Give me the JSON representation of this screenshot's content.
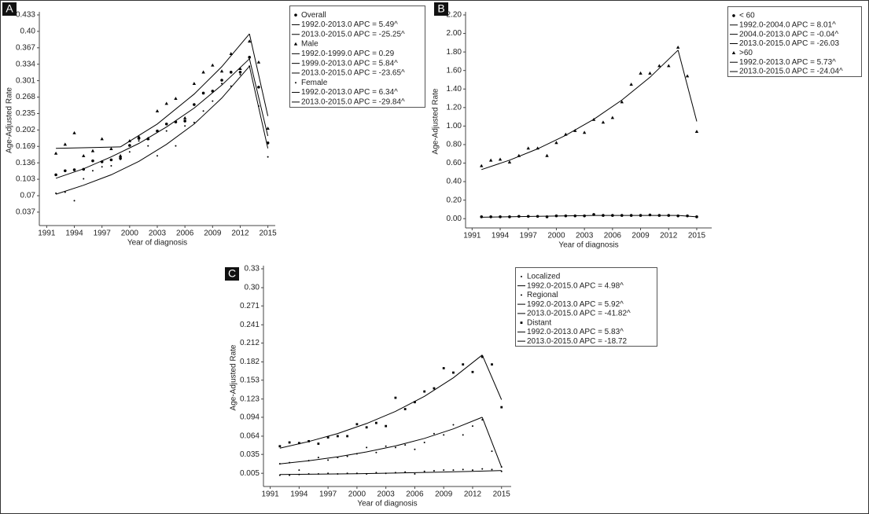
{
  "chart_data": [
    {
      "type": "scatter-line",
      "panel": "A",
      "ylabel": "Age-Adjusted Rate",
      "xlabel": "Year of diagnosis",
      "xlim": [
        1990.2,
        2015.8
      ],
      "xticks": [
        1991,
        1994,
        1997,
        2000,
        2003,
        2006,
        2009,
        2012,
        2015
      ],
      "ylim": [
        0.01,
        0.433
      ],
      "yticks": [
        0.037,
        0.07,
        0.103,
        0.136,
        0.169,
        0.202,
        0.235,
        0.268,
        0.301,
        0.334,
        0.367,
        {
          "value": 0.4,
          "label": "0.40"
        },
        0.433
      ],
      "x": [
        1992,
        1993,
        1994,
        1995,
        1996,
        1997,
        1998,
        1999,
        2000,
        2001,
        2002,
        2003,
        2004,
        2005,
        2006,
        2007,
        2008,
        2009,
        2010,
        2011,
        2012,
        2013,
        2014,
        2015
      ],
      "series": [
        {
          "name": "Overall",
          "kind": "points",
          "marker": "circle",
          "color": "#000000",
          "values": [
            0.112,
            0.12,
            0.122,
            0.123,
            0.14,
            0.138,
            0.142,
            0.145,
            0.171,
            0.185,
            0.184,
            0.2,
            0.214,
            0.218,
            0.22,
            0.253,
            0.276,
            0.28,
            0.302,
            0.318,
            0.318,
            0.348,
            0.288,
            0.176
          ]
        },
        {
          "name": "1992.0-2013.0 APC = 5.49^",
          "kind": "line",
          "color": "#000000",
          "x": [
            1992,
            1995,
            1998,
            2001,
            2004,
            2007,
            2010,
            2013
          ],
          "values": [
            0.105,
            0.124,
            0.148,
            0.175,
            0.208,
            0.246,
            0.292,
            0.345
          ]
        },
        {
          "name": "2013.0-2015.0 APC = -25.25^",
          "kind": "line",
          "color": "#000000",
          "x": [
            2013,
            2015
          ],
          "values": [
            0.345,
            0.19
          ]
        },
        {
          "name": "Male",
          "kind": "points",
          "marker": "triangle",
          "color": "#000000",
          "values": [
            0.155,
            0.173,
            0.196,
            0.15,
            0.16,
            0.184,
            0.164,
            0.15,
            0.18,
            0.188,
            0.185,
            0.24,
            0.255,
            0.265,
            0.226,
            0.295,
            0.318,
            0.332,
            0.32,
            0.355,
            0.325,
            0.38,
            0.338,
            0.205
          ]
        },
        {
          "name": "1992.0-1999.0 APC = 0.29",
          "kind": "line",
          "color": "#000000",
          "x": [
            1992,
            1999
          ],
          "values": [
            0.165,
            0.168
          ]
        },
        {
          "name": "1999.0-2013.0 APC = 5.84^",
          "kind": "line",
          "color": "#000000",
          "x": [
            1999,
            2003,
            2007,
            2010,
            2013
          ],
          "values": [
            0.168,
            0.214,
            0.274,
            0.329,
            0.395
          ]
        },
        {
          "name": "2013.0-2015.0 APC = -23.65^",
          "kind": "line",
          "color": "#000000",
          "x": [
            2013,
            2015
          ],
          "values": [
            0.395,
            0.23
          ]
        },
        {
          "name": "Female",
          "kind": "points",
          "marker": "dot",
          "color": "#000000",
          "values": [
            0.075,
            0.077,
            0.06,
            0.104,
            0.12,
            0.128,
            0.13,
            0.143,
            0.158,
            0.18,
            0.17,
            0.15,
            0.2,
            0.17,
            0.21,
            0.217,
            0.24,
            0.26,
            0.295,
            0.29,
            0.313,
            0.33,
            0.25,
            0.148
          ]
        },
        {
          "name": "1992.0-2013.0 APC = 6.34^",
          "kind": "line",
          "color": "#000000",
          "x": [
            1992,
            1995,
            1998,
            2001,
            2004,
            2007,
            2010,
            2013
          ],
          "values": [
            0.073,
            0.091,
            0.112,
            0.139,
            0.173,
            0.214,
            0.266,
            0.33
          ]
        },
        {
          "name": "2013.0-2015.0 APC = -29.84^",
          "kind": "line",
          "color": "#000000",
          "x": [
            2013,
            2015
          ],
          "values": [
            0.33,
            0.165
          ]
        }
      ]
    },
    {
      "type": "scatter-line",
      "panel": "B",
      "ylabel": "Age-Adjusted Rate",
      "xlabel": "Year of diagnosis",
      "xlim": [
        1990.3,
        2016.6
      ],
      "xticks": [
        1991,
        1994,
        1997,
        2000,
        2003,
        2006,
        2009,
        2012,
        2015
      ],
      "ylim": [
        -0.1,
        2.2
      ],
      "yticks": [
        {
          "value": 0,
          "label": "0.00"
        },
        {
          "value": 0.2,
          "label": "0.20"
        },
        {
          "value": 0.4,
          "label": "0.40"
        },
        {
          "value": 0.6,
          "label": "0.60"
        },
        {
          "value": 0.8,
          "label": "0.80"
        },
        {
          "value": 1,
          "label": "1.00"
        },
        {
          "value": 1.2,
          "label": "1.20"
        },
        {
          "value": 1.4,
          "label": "1.40"
        },
        {
          "value": 1.6,
          "label": "1.60"
        },
        {
          "value": 1.8,
          "label": "1.80"
        },
        {
          "value": 2,
          "label": "2.00"
        },
        {
          "value": 2.2,
          "label": "2.20"
        }
      ],
      "x": [
        1992,
        1993,
        1994,
        1995,
        1996,
        1997,
        1998,
        1999,
        2000,
        2001,
        2002,
        2003,
        2004,
        2005,
        2006,
        2007,
        2008,
        2009,
        2010,
        2011,
        2012,
        2013,
        2014,
        2015
      ],
      "series": [
        {
          "name": "< 60",
          "kind": "points",
          "marker": "circle",
          "color": "#000000",
          "values": [
            0.02,
            0.02,
            0.02,
            0.02,
            0.025,
            0.025,
            0.025,
            0.02,
            0.03,
            0.03,
            0.03,
            0.03,
            0.045,
            0.035,
            0.035,
            0.035,
            0.035,
            0.035,
            0.04,
            0.035,
            0.035,
            0.03,
            0.03,
            0.02
          ]
        },
        {
          "name": "1992.0-2004.0 APC = 8.01^",
          "kind": "line",
          "color": "#000000",
          "x": [
            1992,
            2004
          ],
          "values": [
            0.015,
            0.035
          ]
        },
        {
          "name": "2004.0-2013.0 APC = -0.04^",
          "kind": "line",
          "color": "#000000",
          "x": [
            2004,
            2013
          ],
          "values": [
            0.035,
            0.035
          ]
        },
        {
          "name": "2013.0-2015.0 APC = -26.03",
          "kind": "line",
          "color": "#000000",
          "x": [
            2013,
            2015
          ],
          "values": [
            0.035,
            0.02
          ]
        },
        {
          "name": ">60",
          "kind": "points",
          "marker": "triangle",
          "color": "#000000",
          "values": [
            0.57,
            0.63,
            0.64,
            0.61,
            0.68,
            0.76,
            0.76,
            0.68,
            0.82,
            0.91,
            0.95,
            0.93,
            1.07,
            1.04,
            1.09,
            1.26,
            1.45,
            1.57,
            1.57,
            1.65,
            1.65,
            1.85,
            1.54,
            0.94
          ]
        },
        {
          "name": "1992.0-2013.0 APC = 5.73^",
          "kind": "line",
          "color": "#000000",
          "x": [
            1992,
            1995,
            1998,
            2001,
            2004,
            2007,
            2010,
            2013
          ],
          "values": [
            0.53,
            0.632,
            0.754,
            0.9,
            1.073,
            1.28,
            1.527,
            1.82
          ]
        },
        {
          "name": "2013.0-2015.0 APC = -24.04^",
          "kind": "line",
          "color": "#000000",
          "x": [
            2013,
            2015
          ],
          "values": [
            1.82,
            1.05
          ]
        }
      ]
    },
    {
      "type": "scatter-line",
      "panel": "C",
      "ylabel": "Age-Adjusted Rate",
      "xlabel": "Year of diagnosis",
      "xlim": [
        1990.3,
        2016
      ],
      "xticks": [
        1991,
        1994,
        1997,
        2000,
        2003,
        2006,
        2009,
        2012,
        2015
      ],
      "ylim": [
        -0.016,
        0.33
      ],
      "yticks": [
        0.005,
        0.035,
        0.064,
        0.094,
        0.123,
        0.153,
        0.182,
        0.212,
        0.241,
        0.271,
        {
          "value": 0.3,
          "label": "0.30"
        },
        0.33
      ],
      "x": [
        1992,
        1993,
        1994,
        1995,
        1996,
        1997,
        1998,
        1999,
        2000,
        2001,
        2002,
        2003,
        2004,
        2005,
        2006,
        2007,
        2008,
        2009,
        2010,
        2011,
        2012,
        2013,
        2014,
        2015
      ],
      "series": [
        {
          "name": "Localized",
          "kind": "points",
          "marker": "dot",
          "color": "#000000",
          "values": [
            0.002,
            0.002,
            0.003,
            0.004,
            0.004,
            0.005,
            0.004,
            0.005,
            0.005,
            0.004,
            0.006,
            0.005,
            0.006,
            0.007,
            0.004,
            0.008,
            0.009,
            0.01,
            0.01,
            0.011,
            0.01,
            0.012,
            0.011,
            0.008
          ]
        },
        {
          "name": "1992.0-2015.0 APC = 4.98^",
          "kind": "line",
          "color": "#000000",
          "x": [
            1992,
            1996,
            2000,
            2004,
            2008,
            2012,
            2015
          ],
          "values": [
            0.003,
            0.0036,
            0.0044,
            0.0054,
            0.0066,
            0.008,
            0.0093
          ]
        },
        {
          "name": "Regional",
          "kind": "points",
          "marker": "dot",
          "color": "#000000",
          "values": [
            0.02,
            0.022,
            0.01,
            0.025,
            0.03,
            0.026,
            0.03,
            0.032,
            0.036,
            0.046,
            0.038,
            0.048,
            0.046,
            0.05,
            0.043,
            0.054,
            0.068,
            0.066,
            0.082,
            0.066,
            0.08,
            0.09,
            0.04,
            0.015
          ]
        },
        {
          "name": "1992.0-2013.0 APC = 5.92^",
          "kind": "line",
          "color": "#000000",
          "x": [
            1992,
            1995,
            1998,
            2001,
            2004,
            2007,
            2010,
            2013
          ],
          "values": [
            0.02,
            0.025,
            0.0312,
            0.0389,
            0.0485,
            0.0605,
            0.0755,
            0.094
          ]
        },
        {
          "name": "2013.0-2015.0 APC = -41.82^",
          "kind": "line",
          "color": "#000000",
          "x": [
            2013,
            2015
          ],
          "values": [
            0.094,
            0.015
          ]
        },
        {
          "name": "Distant",
          "kind": "points",
          "marker": "square",
          "color": "#000000",
          "values": [
            0.048,
            0.054,
            0.053,
            0.056,
            0.052,
            0.062,
            0.064,
            0.064,
            0.083,
            0.078,
            0.085,
            0.08,
            0.125,
            0.107,
            0.118,
            0.135,
            0.14,
            0.172,
            0.165,
            0.178,
            0.166,
            0.19,
            0.178,
            0.11
          ]
        },
        {
          "name": "1992.0-2013.0 APC = 5.83^",
          "kind": "line",
          "color": "#000000",
          "x": [
            1992,
            1995,
            1998,
            2001,
            2004,
            2007,
            2010,
            2013
          ],
          "values": [
            0.045,
            0.0554,
            0.0682,
            0.084,
            0.1034,
            0.1273,
            0.1567,
            0.193
          ]
        },
        {
          "name": "2013.0-2015.0 APC = -18.72",
          "kind": "line",
          "color": "#000000",
          "x": [
            2013,
            2015
          ],
          "values": [
            0.193,
            0.122
          ]
        }
      ]
    }
  ]
}
